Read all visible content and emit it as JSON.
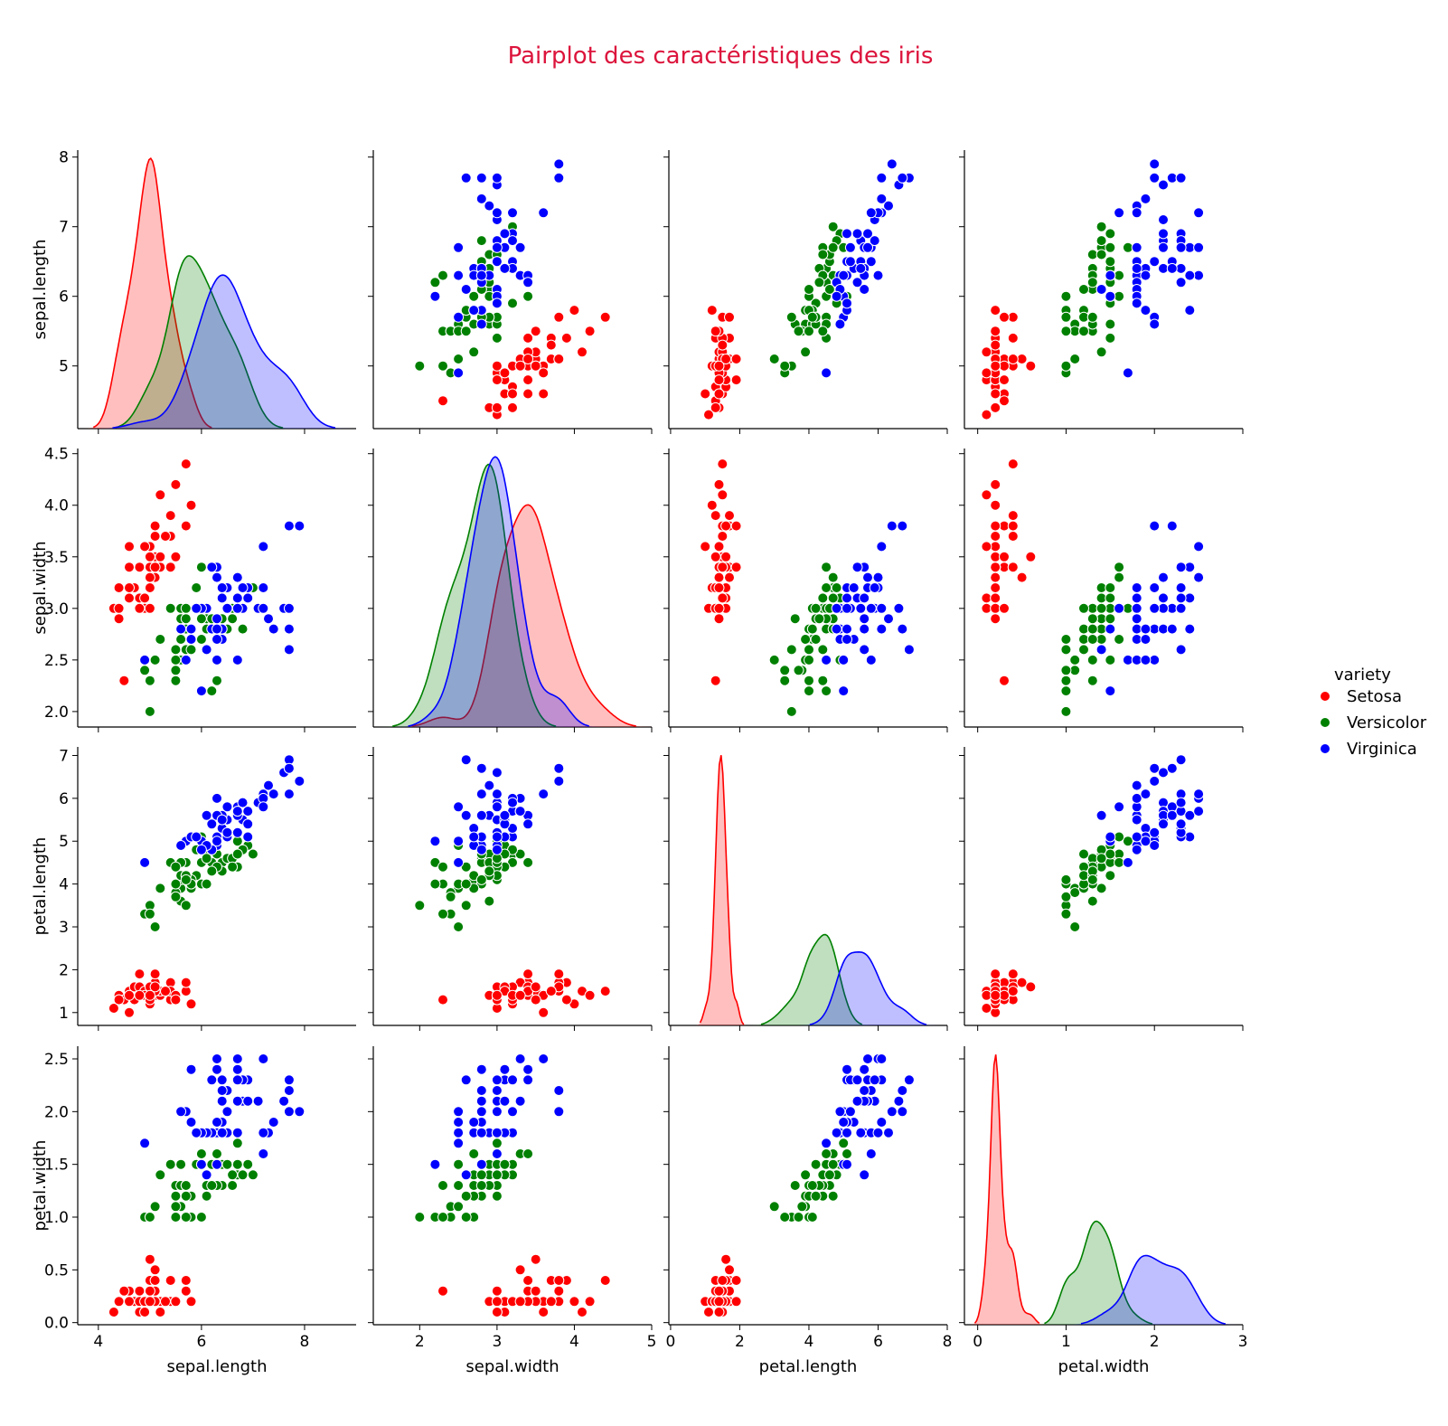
{
  "chart_data": {
    "type": "scatter",
    "kind": "pairplot",
    "title": "Pairplot des caractéristiques des iris",
    "title_color": "#dc143c",
    "variables": [
      "sepal.length",
      "sepal.width",
      "petal.length",
      "petal.width"
    ],
    "axes": {
      "sepal.length": {
        "range": [
          3.6,
          9.0
        ],
        "ticks": [
          4,
          6,
          8
        ],
        "row_range": [
          4.1,
          8.1
        ],
        "row_ticks": [
          5,
          6,
          7,
          8
        ]
      },
      "sepal.width": {
        "range": [
          1.4,
          5.0
        ],
        "ticks": [
          2,
          3,
          4,
          5
        ],
        "row_range": [
          1.85,
          4.55
        ],
        "row_ticks": [
          2.0,
          2.5,
          3.0,
          3.5,
          4.0,
          4.5
        ]
      },
      "petal.length": {
        "range": [
          -0.05,
          8.0
        ],
        "ticks": [
          0,
          2,
          4,
          6,
          8
        ],
        "row_range": [
          0.7,
          7.2
        ],
        "row_ticks": [
          1,
          2,
          3,
          4,
          5,
          6,
          7
        ]
      },
      "petal.width": {
        "range": [
          -0.15,
          3.0
        ],
        "ticks": [
          0,
          1,
          2,
          3
        ],
        "row_range": [
          -0.02,
          2.62
        ],
        "row_ticks": [
          0.0,
          0.5,
          1.0,
          1.5,
          2.0,
          2.5
        ]
      }
    },
    "legend": {
      "title": "variety",
      "position": "right",
      "items": [
        {
          "label": "Setosa",
          "color": "#ff0000"
        },
        {
          "label": "Versicolor",
          "color": "#008000"
        },
        {
          "label": "Virginica",
          "color": "#0000ff"
        }
      ]
    },
    "series": [
      {
        "name": "Setosa",
        "color": "#ff0000",
        "fill": "#ffb3b3",
        "points": [
          [
            5.1,
            3.5,
            1.4,
            0.2
          ],
          [
            4.9,
            3.0,
            1.4,
            0.2
          ],
          [
            4.7,
            3.2,
            1.3,
            0.2
          ],
          [
            4.6,
            3.1,
            1.5,
            0.2
          ],
          [
            5.0,
            3.6,
            1.4,
            0.2
          ],
          [
            5.4,
            3.9,
            1.7,
            0.4
          ],
          [
            4.6,
            3.4,
            1.4,
            0.3
          ],
          [
            5.0,
            3.4,
            1.5,
            0.2
          ],
          [
            4.4,
            2.9,
            1.4,
            0.2
          ],
          [
            4.9,
            3.1,
            1.5,
            0.1
          ],
          [
            5.4,
            3.7,
            1.5,
            0.2
          ],
          [
            4.8,
            3.4,
            1.6,
            0.2
          ],
          [
            4.8,
            3.0,
            1.4,
            0.1
          ],
          [
            4.3,
            3.0,
            1.1,
            0.1
          ],
          [
            5.8,
            4.0,
            1.2,
            0.2
          ],
          [
            5.7,
            4.4,
            1.5,
            0.4
          ],
          [
            5.4,
            3.9,
            1.3,
            0.4
          ],
          [
            5.1,
            3.5,
            1.4,
            0.3
          ],
          [
            5.7,
            3.8,
            1.7,
            0.3
          ],
          [
            5.1,
            3.8,
            1.5,
            0.3
          ],
          [
            5.4,
            3.4,
            1.7,
            0.2
          ],
          [
            5.1,
            3.7,
            1.5,
            0.4
          ],
          [
            4.6,
            3.6,
            1.0,
            0.2
          ],
          [
            5.1,
            3.3,
            1.7,
            0.5
          ],
          [
            4.8,
            3.4,
            1.9,
            0.2
          ],
          [
            5.0,
            3.0,
            1.6,
            0.2
          ],
          [
            5.0,
            3.4,
            1.6,
            0.4
          ],
          [
            5.2,
            3.5,
            1.5,
            0.2
          ],
          [
            5.2,
            3.4,
            1.4,
            0.2
          ],
          [
            4.7,
            3.2,
            1.6,
            0.2
          ],
          [
            4.8,
            3.1,
            1.6,
            0.2
          ],
          [
            5.4,
            3.4,
            1.5,
            0.4
          ],
          [
            5.2,
            4.1,
            1.5,
            0.1
          ],
          [
            5.5,
            4.2,
            1.4,
            0.2
          ],
          [
            4.9,
            3.1,
            1.5,
            0.2
          ],
          [
            5.0,
            3.2,
            1.2,
            0.2
          ],
          [
            5.5,
            3.5,
            1.3,
            0.2
          ],
          [
            4.9,
            3.6,
            1.4,
            0.1
          ],
          [
            4.4,
            3.0,
            1.3,
            0.2
          ],
          [
            5.1,
            3.4,
            1.5,
            0.2
          ],
          [
            5.0,
            3.5,
            1.3,
            0.3
          ],
          [
            4.5,
            2.3,
            1.3,
            0.3
          ],
          [
            4.4,
            3.2,
            1.3,
            0.2
          ],
          [
            5.0,
            3.5,
            1.6,
            0.6
          ],
          [
            5.1,
            3.8,
            1.9,
            0.4
          ],
          [
            4.8,
            3.0,
            1.4,
            0.3
          ],
          [
            5.1,
            3.8,
            1.6,
            0.2
          ],
          [
            4.6,
            3.2,
            1.4,
            0.2
          ],
          [
            5.3,
            3.7,
            1.5,
            0.2
          ],
          [
            5.0,
            3.3,
            1.4,
            0.2
          ]
        ]
      },
      {
        "name": "Versicolor",
        "color": "#008000",
        "fill": "#b8deb8",
        "points": [
          [
            7.0,
            3.2,
            4.7,
            1.4
          ],
          [
            6.4,
            3.2,
            4.5,
            1.5
          ],
          [
            6.9,
            3.1,
            4.9,
            1.5
          ],
          [
            5.5,
            2.3,
            4.0,
            1.3
          ],
          [
            6.5,
            2.8,
            4.6,
            1.5
          ],
          [
            5.7,
            2.8,
            4.5,
            1.3
          ],
          [
            6.3,
            3.3,
            4.7,
            1.6
          ],
          [
            4.9,
            2.4,
            3.3,
            1.0
          ],
          [
            6.6,
            2.9,
            4.6,
            1.3
          ],
          [
            5.2,
            2.7,
            3.9,
            1.4
          ],
          [
            5.0,
            2.0,
            3.5,
            1.0
          ],
          [
            5.9,
            3.0,
            4.2,
            1.5
          ],
          [
            6.0,
            2.2,
            4.0,
            1.0
          ],
          [
            6.1,
            2.9,
            4.7,
            1.4
          ],
          [
            5.6,
            2.9,
            3.6,
            1.3
          ],
          [
            6.7,
            3.1,
            4.4,
            1.4
          ],
          [
            5.6,
            3.0,
            4.5,
            1.5
          ],
          [
            5.8,
            2.7,
            4.1,
            1.0
          ],
          [
            6.2,
            2.2,
            4.5,
            1.5
          ],
          [
            5.6,
            2.5,
            3.9,
            1.1
          ],
          [
            5.9,
            3.2,
            4.8,
            1.8
          ],
          [
            6.1,
            2.8,
            4.0,
            1.3
          ],
          [
            6.3,
            2.5,
            4.9,
            1.5
          ],
          [
            6.1,
            2.8,
            4.7,
            1.2
          ],
          [
            6.4,
            2.9,
            4.3,
            1.3
          ],
          [
            6.6,
            3.0,
            4.4,
            1.4
          ],
          [
            6.8,
            2.8,
            4.8,
            1.4
          ],
          [
            6.7,
            3.0,
            5.0,
            1.7
          ],
          [
            6.0,
            2.9,
            4.5,
            1.5
          ],
          [
            5.7,
            2.6,
            3.5,
            1.0
          ],
          [
            5.5,
            2.4,
            3.8,
            1.1
          ],
          [
            5.5,
            2.4,
            3.7,
            1.0
          ],
          [
            5.8,
            2.7,
            3.9,
            1.2
          ],
          [
            6.0,
            2.7,
            5.1,
            1.6
          ],
          [
            5.4,
            3.0,
            4.5,
            1.5
          ],
          [
            6.0,
            3.4,
            4.5,
            1.6
          ],
          [
            6.7,
            3.1,
            4.7,
            1.5
          ],
          [
            6.3,
            2.3,
            4.4,
            1.3
          ],
          [
            5.6,
            3.0,
            4.1,
            1.3
          ],
          [
            5.5,
            2.5,
            4.0,
            1.3
          ],
          [
            5.5,
            2.6,
            4.4,
            1.2
          ],
          [
            6.1,
            3.0,
            4.6,
            1.4
          ],
          [
            5.8,
            2.6,
            4.0,
            1.2
          ],
          [
            5.0,
            2.3,
            3.3,
            1.0
          ],
          [
            5.6,
            2.7,
            4.2,
            1.3
          ],
          [
            5.7,
            3.0,
            4.2,
            1.2
          ],
          [
            5.7,
            2.9,
            4.2,
            1.3
          ],
          [
            6.2,
            2.9,
            4.3,
            1.3
          ],
          [
            5.1,
            2.5,
            3.0,
            1.1
          ],
          [
            5.7,
            2.8,
            4.1,
            1.3
          ]
        ]
      },
      {
        "name": "Virginica",
        "color": "#0000ff",
        "fill": "#b3b3ff",
        "points": [
          [
            6.3,
            3.3,
            6.0,
            2.5
          ],
          [
            5.8,
            2.7,
            5.1,
            1.9
          ],
          [
            7.1,
            3.0,
            5.9,
            2.1
          ],
          [
            6.3,
            2.9,
            5.6,
            1.8
          ],
          [
            6.5,
            3.0,
            5.8,
            2.2
          ],
          [
            7.6,
            3.0,
            6.6,
            2.1
          ],
          [
            4.9,
            2.5,
            4.5,
            1.7
          ],
          [
            7.3,
            2.9,
            6.3,
            1.8
          ],
          [
            6.7,
            2.5,
            5.8,
            1.8
          ],
          [
            7.2,
            3.6,
            6.1,
            2.5
          ],
          [
            6.5,
            3.2,
            5.1,
            2.0
          ],
          [
            6.4,
            2.7,
            5.3,
            1.9
          ],
          [
            6.8,
            3.0,
            5.5,
            2.1
          ],
          [
            5.7,
            2.5,
            5.0,
            2.0
          ],
          [
            5.8,
            2.8,
            5.1,
            2.4
          ],
          [
            6.4,
            3.2,
            5.3,
            2.3
          ],
          [
            6.5,
            3.0,
            5.5,
            1.8
          ],
          [
            7.7,
            3.8,
            6.7,
            2.2
          ],
          [
            7.7,
            2.6,
            6.9,
            2.3
          ],
          [
            6.0,
            2.2,
            5.0,
            1.5
          ],
          [
            6.9,
            3.2,
            5.7,
            2.3
          ],
          [
            5.6,
            2.8,
            4.9,
            2.0
          ],
          [
            7.7,
            2.8,
            6.7,
            2.0
          ],
          [
            6.3,
            2.7,
            4.9,
            1.8
          ],
          [
            6.7,
            3.3,
            5.7,
            2.1
          ],
          [
            7.2,
            3.2,
            6.0,
            1.8
          ],
          [
            6.2,
            2.8,
            4.8,
            1.8
          ],
          [
            6.1,
            3.0,
            4.9,
            1.8
          ],
          [
            6.4,
            2.8,
            5.6,
            2.1
          ],
          [
            7.2,
            3.0,
            5.8,
            1.6
          ],
          [
            7.4,
            2.8,
            6.1,
            1.9
          ],
          [
            7.9,
            3.8,
            6.4,
            2.0
          ],
          [
            6.4,
            2.8,
            5.6,
            2.2
          ],
          [
            6.3,
            2.8,
            5.1,
            1.5
          ],
          [
            6.1,
            2.6,
            5.6,
            1.4
          ],
          [
            7.7,
            3.0,
            6.1,
            2.3
          ],
          [
            6.3,
            3.4,
            5.6,
            2.4
          ],
          [
            6.4,
            3.1,
            5.5,
            1.8
          ],
          [
            6.0,
            3.0,
            4.8,
            1.8
          ],
          [
            6.9,
            3.1,
            5.4,
            2.1
          ],
          [
            6.7,
            3.1,
            5.6,
            2.4
          ],
          [
            6.9,
            3.1,
            5.1,
            2.3
          ],
          [
            5.8,
            2.7,
            5.1,
            1.9
          ],
          [
            6.8,
            3.2,
            5.9,
            2.3
          ],
          [
            6.7,
            3.3,
            5.7,
            2.5
          ],
          [
            6.7,
            3.0,
            5.2,
            2.3
          ],
          [
            6.3,
            2.5,
            5.0,
            1.9
          ],
          [
            6.5,
            3.0,
            5.2,
            2.0
          ],
          [
            6.2,
            3.4,
            5.4,
            2.3
          ],
          [
            5.9,
            3.0,
            5.1,
            1.8
          ]
        ]
      }
    ]
  }
}
